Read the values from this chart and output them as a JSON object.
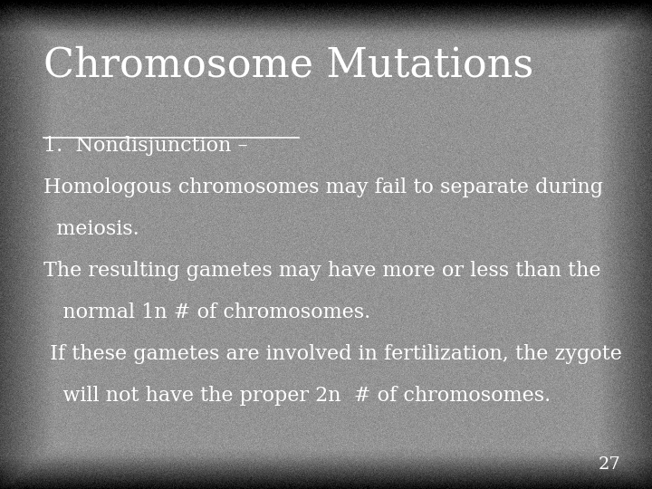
{
  "title": "Chromosome Mutations",
  "title_fontsize": 32,
  "title_color": "#ffffff",
  "title_font": "serif",
  "background_color_base": 0.58,
  "slide_number": "27",
  "body_lines": [
    {
      "text": "1.  Nondisjunction –",
      "underline": true,
      "bold": false,
      "fontsize": 16
    },
    {
      "text": "Homologous chromosomes may fail to separate during",
      "underline": false,
      "bold": false,
      "fontsize": 16
    },
    {
      "text": "  meiosis.",
      "underline": false,
      "bold": false,
      "fontsize": 16
    },
    {
      "text": "The resulting gametes may have more or less than the",
      "underline": false,
      "bold": false,
      "fontsize": 16
    },
    {
      "text": "   normal 1n # of chromosomes.",
      "underline": false,
      "bold": false,
      "fontsize": 16
    },
    {
      "text": " If these gametes are involved in fertilization, the zygote",
      "underline": false,
      "bold": false,
      "fontsize": 16
    },
    {
      "text": "   will not have the proper 2n  # of chromosomes.",
      "underline": false,
      "bold": false,
      "fontsize": 16
    }
  ],
  "text_color": "#ffffff",
  "body_font": "serif",
  "fig_width": 7.2,
  "fig_height": 5.4,
  "dpi": 100
}
